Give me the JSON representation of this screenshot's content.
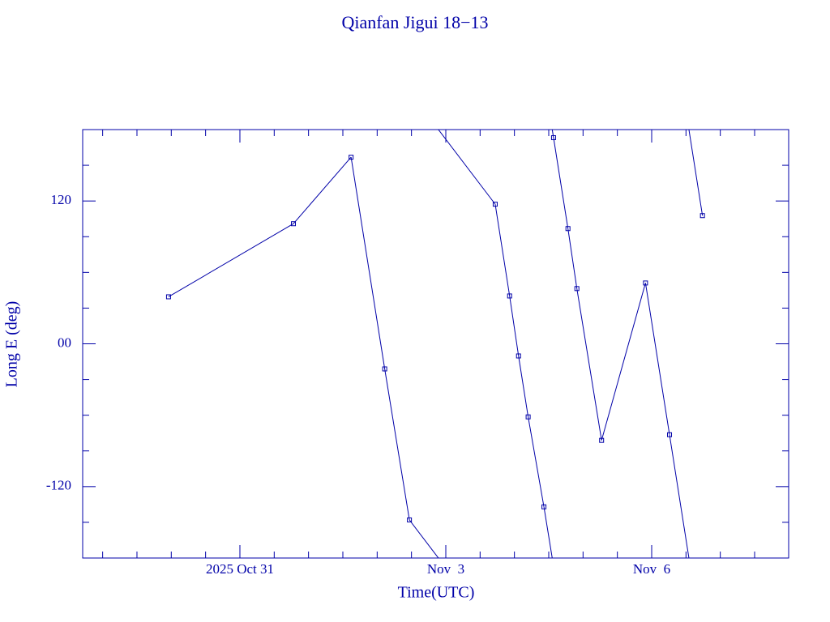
{
  "chart_data": {
    "type": "line",
    "title": "Qianfan Jigui 18−13",
    "xlabel": "Time(UTC)",
    "ylabel": "Long E (deg)",
    "series": [
      {
        "name": "Qianfan Jigui 18−13",
        "color": "#0000a8",
        "x": [
          29.96,
          31.78,
          32.62,
          33.11,
          33.47,
          34.72,
          34.93,
          35.06,
          35.2,
          35.43,
          35.57,
          35.78,
          35.91,
          36.27,
          36.91,
          37.26,
          37.74
        ],
        "values": [
          39.5,
          100.9,
          156.8,
          -21.1,
          -148,
          117.3,
          40.2,
          -10.2,
          -61.4,
          -137,
          173.2,
          96.8,
          46.4,
          -81.1,
          51.1,
          -76.4,
          107.7
        ]
      }
    ],
    "xlim": [
      28.709,
      38.996
    ],
    "xticks": [
      {
        "value": 31,
        "label": "2025 Oct 31"
      },
      {
        "value": 34,
        "label": "Nov  3"
      },
      {
        "value": 37,
        "label": "Nov  6"
      }
    ],
    "xminorticks": [
      29,
      29.5,
      30,
      30.5,
      31.5,
      32,
      32.5,
      33,
      33.5,
      34.5,
      35,
      35.5,
      36,
      36.5,
      37.5,
      38,
      38.5
    ],
    "ylim": [
      -180,
      180
    ],
    "yticks": [
      -120,
      {
        "value": 0,
        "label": "00"
      },
      120
    ],
    "yminorticks": [
      -150,
      -90,
      -60,
      -30,
      30,
      60,
      90,
      150
    ],
    "wrap": 360
  }
}
